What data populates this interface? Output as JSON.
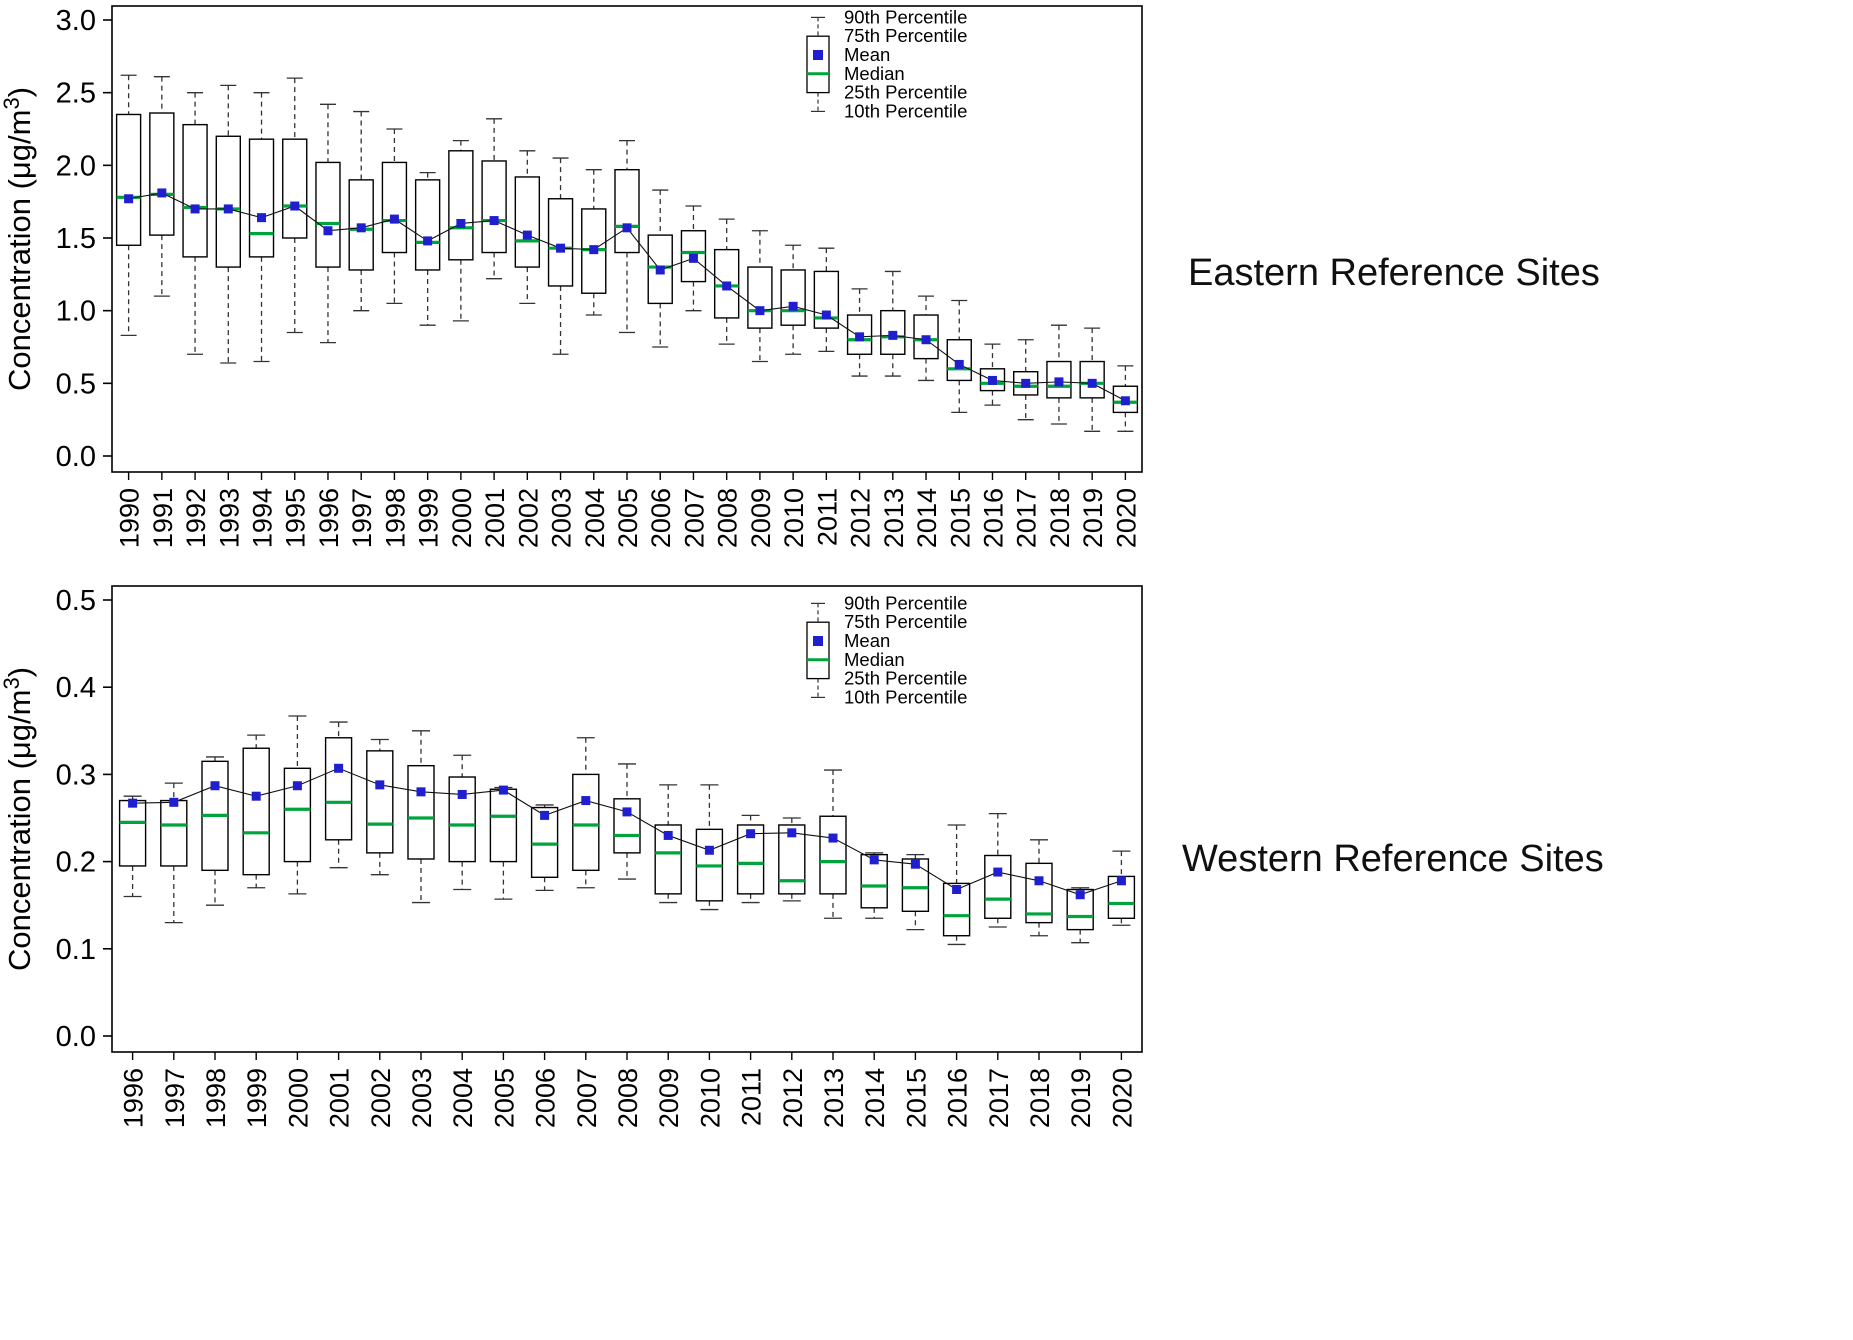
{
  "figure": {
    "background": "#ffffff"
  },
  "colors": {
    "mean_marker": "#1F1FD0",
    "median_line": "#00A33C",
    "box_stroke": "#000000",
    "whisker": "#333333",
    "mean_trend_line": "#111111",
    "text": "#000000"
  },
  "chart_data": [
    {
      "type": "boxplot",
      "title": "Eastern Reference Sites",
      "ylabel": "Concentration (μg/m³)",
      "ylim": [
        0,
        3.0
      ],
      "yticks": [
        0,
        0.5,
        1.0,
        1.5,
        2.0,
        2.5,
        3.0
      ],
      "grid": false,
      "legend_position": "top-right-inside",
      "legend": [
        "90th Percentile",
        "75th Percentile",
        "Mean",
        "Median",
        "25th Percentile",
        "10th Percentile"
      ],
      "categories": [
        1990,
        1991,
        1992,
        1993,
        1994,
        1995,
        1996,
        1997,
        1998,
        1999,
        2000,
        2001,
        2002,
        2003,
        2004,
        2005,
        2006,
        2007,
        2008,
        2009,
        2010,
        2011,
        2012,
        2013,
        2014,
        2015,
        2016,
        2017,
        2018,
        2019,
        2020
      ],
      "series": [
        {
          "name": "90th Percentile",
          "values": [
            2.62,
            2.61,
            2.5,
            2.55,
            2.5,
            2.6,
            2.42,
            2.37,
            2.25,
            1.95,
            2.17,
            2.32,
            2.1,
            2.05,
            1.97,
            2.17,
            1.83,
            1.72,
            1.63,
            1.55,
            1.45,
            1.43,
            1.15,
            1.27,
            1.1,
            1.07,
            0.77,
            0.8,
            0.9,
            0.88,
            0.62
          ]
        },
        {
          "name": "75th Percentile",
          "values": [
            2.35,
            2.36,
            2.28,
            2.2,
            2.18,
            2.18,
            2.02,
            1.9,
            2.02,
            1.9,
            2.1,
            2.03,
            1.92,
            1.77,
            1.7,
            1.97,
            1.52,
            1.55,
            1.42,
            1.3,
            1.28,
            1.27,
            0.97,
            1.0,
            0.97,
            0.8,
            0.6,
            0.58,
            0.65,
            0.65,
            0.48
          ]
        },
        {
          "name": "Mean",
          "values": [
            1.77,
            1.81,
            1.7,
            1.7,
            1.64,
            1.72,
            1.55,
            1.57,
            1.63,
            1.48,
            1.6,
            1.62,
            1.52,
            1.43,
            1.42,
            1.57,
            1.28,
            1.36,
            1.17,
            1.0,
            1.03,
            0.97,
            0.82,
            0.83,
            0.8,
            0.63,
            0.52,
            0.5,
            0.51,
            0.5,
            0.38
          ]
        },
        {
          "name": "Median",
          "values": [
            1.78,
            1.8,
            1.71,
            1.7,
            1.53,
            1.72,
            1.6,
            1.56,
            1.62,
            1.47,
            1.57,
            1.62,
            1.48,
            1.43,
            1.42,
            1.58,
            1.3,
            1.4,
            1.17,
            1.0,
            1.0,
            0.95,
            0.8,
            0.82,
            0.8,
            0.6,
            0.5,
            0.48,
            0.48,
            0.5,
            0.37
          ]
        },
        {
          "name": "25th Percentile",
          "values": [
            1.45,
            1.52,
            1.37,
            1.3,
            1.37,
            1.5,
            1.3,
            1.28,
            1.4,
            1.28,
            1.35,
            1.4,
            1.3,
            1.17,
            1.12,
            1.4,
            1.05,
            1.2,
            0.95,
            0.88,
            0.9,
            0.88,
            0.7,
            0.7,
            0.67,
            0.52,
            0.45,
            0.42,
            0.4,
            0.4,
            0.3
          ]
        },
        {
          "name": "10th Percentile",
          "values": [
            0.83,
            1.1,
            0.7,
            0.64,
            0.65,
            0.85,
            0.78,
            1.0,
            1.05,
            0.9,
            0.93,
            1.22,
            1.05,
            0.7,
            0.97,
            0.85,
            0.75,
            1.0,
            0.77,
            0.65,
            0.7,
            0.72,
            0.55,
            0.55,
            0.52,
            0.3,
            0.35,
            0.25,
            0.22,
            0.17,
            0.17
          ]
        }
      ]
    },
    {
      "type": "boxplot",
      "title": "Western Reference Sites",
      "ylabel": "Concentration (μg/m³)",
      "ylim": [
        0,
        0.5
      ],
      "yticks": [
        0,
        0.1,
        0.2,
        0.3,
        0.4,
        0.5
      ],
      "grid": false,
      "legend_position": "top-right-inside",
      "legend": [
        "90th Percentile",
        "75th Percentile",
        "Mean",
        "Median",
        "25th Percentile",
        "10th Percentile"
      ],
      "categories": [
        1996,
        1997,
        1998,
        1999,
        2000,
        2001,
        2002,
        2003,
        2004,
        2005,
        2006,
        2007,
        2008,
        2009,
        2010,
        2011,
        2012,
        2013,
        2014,
        2015,
        2016,
        2017,
        2018,
        2019,
        2020
      ],
      "series": [
        {
          "name": "90th Percentile",
          "values": [
            0.275,
            0.29,
            0.32,
            0.345,
            0.367,
            0.36,
            0.34,
            0.35,
            0.322,
            0.285,
            0.265,
            0.342,
            0.312,
            0.288,
            0.288,
            0.253,
            0.25,
            0.305,
            0.21,
            0.208,
            0.242,
            0.255,
            0.225,
            0.17,
            0.212
          ]
        },
        {
          "name": "75th Percentile",
          "values": [
            0.27,
            0.27,
            0.315,
            0.33,
            0.307,
            0.342,
            0.327,
            0.31,
            0.297,
            0.283,
            0.262,
            0.3,
            0.272,
            0.242,
            0.237,
            0.242,
            0.242,
            0.252,
            0.208,
            0.203,
            0.175,
            0.207,
            0.198,
            0.168,
            0.183
          ]
        },
        {
          "name": "Mean",
          "values": [
            0.267,
            0.268,
            0.287,
            0.275,
            0.287,
            0.307,
            0.288,
            0.28,
            0.277,
            0.282,
            0.253,
            0.27,
            0.257,
            0.23,
            0.213,
            0.232,
            0.233,
            0.227,
            0.202,
            0.197,
            0.168,
            0.188,
            0.178,
            0.162,
            0.178
          ]
        },
        {
          "name": "Median",
          "values": [
            0.245,
            0.242,
            0.253,
            0.233,
            0.26,
            0.268,
            0.243,
            0.25,
            0.242,
            0.252,
            0.22,
            0.242,
            0.23,
            0.21,
            0.195,
            0.198,
            0.178,
            0.2,
            0.172,
            0.17,
            0.138,
            0.157,
            0.14,
            0.137,
            0.152
          ]
        },
        {
          "name": "25th Percentile",
          "values": [
            0.195,
            0.195,
            0.19,
            0.185,
            0.2,
            0.225,
            0.21,
            0.203,
            0.2,
            0.2,
            0.182,
            0.19,
            0.21,
            0.163,
            0.155,
            0.163,
            0.163,
            0.163,
            0.147,
            0.143,
            0.115,
            0.135,
            0.13,
            0.122,
            0.135
          ]
        },
        {
          "name": "10th Percentile",
          "values": [
            0.16,
            0.13,
            0.15,
            0.17,
            0.163,
            0.193,
            0.185,
            0.153,
            0.168,
            0.157,
            0.167,
            0.17,
            0.18,
            0.153,
            0.145,
            0.153,
            0.155,
            0.135,
            0.135,
            0.122,
            0.105,
            0.125,
            0.115,
            0.107,
            0.127
          ]
        }
      ]
    }
  ]
}
